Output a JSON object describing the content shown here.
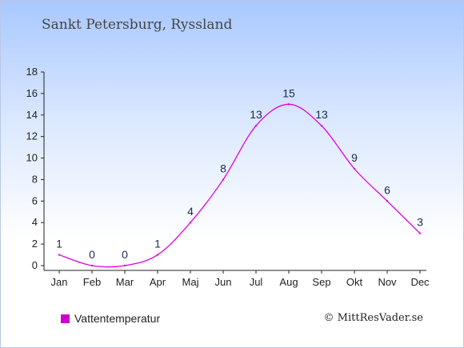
{
  "title": "Sankt Petersburg, Ryssland",
  "legend_label": "Vattentemperatur",
  "copyright": "© MittResVader.se",
  "colors": {
    "line": "#e000e0",
    "swatch": "#cc00cc"
  },
  "chart_data": {
    "type": "line",
    "title": "Sankt Petersburg, Ryssland",
    "categories": [
      "Jan",
      "Feb",
      "Mar",
      "Apr",
      "Maj",
      "Jun",
      "Jul",
      "Aug",
      "Sep",
      "Okt",
      "Nov",
      "Dec"
    ],
    "series": [
      {
        "name": "Vattentemperatur",
        "values": [
          1,
          0,
          0,
          1,
          4,
          8,
          13,
          15,
          13,
          9,
          6,
          3
        ]
      }
    ],
    "ylim": [
      0,
      18
    ],
    "yticks": [
      0,
      2,
      4,
      6,
      8,
      10,
      12,
      14,
      16,
      18
    ],
    "grid": false,
    "legend": "bottom-left"
  }
}
